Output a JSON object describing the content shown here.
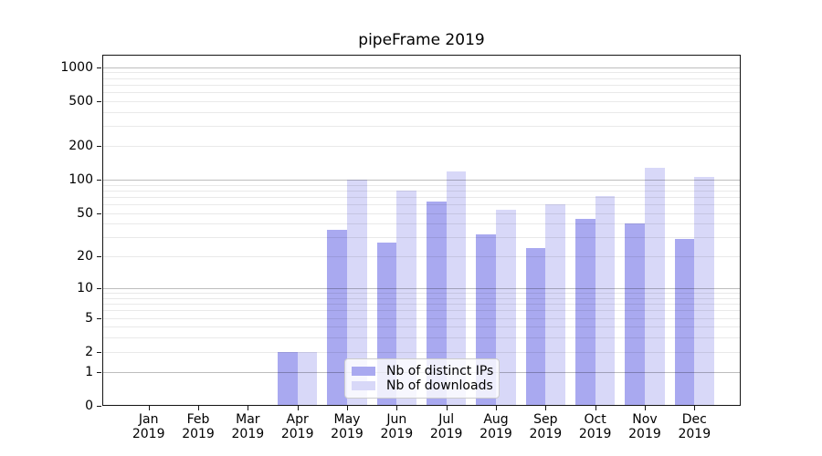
{
  "title": "pipeFrame 2019",
  "chart_data": {
    "type": "bar",
    "title": "pipeFrame 2019",
    "yscale": "log1p",
    "grid": "both (major and minor), drawn above bars",
    "legend_position": "lower center",
    "categories": [
      "Jan 2019",
      "Feb 2019",
      "Mar 2019",
      "Apr 2019",
      "May 2019",
      "Jun 2019",
      "Jul 2019",
      "Aug 2019",
      "Sep 2019",
      "Oct 2019",
      "Nov 2019",
      "Dec 2019"
    ],
    "series": [
      {
        "name": "Nb of distinct IPs",
        "color": "#a9a9f0",
        "values": [
          0,
          0,
          0,
          2,
          35,
          27,
          64,
          32,
          24,
          44,
          40,
          29
        ]
      },
      {
        "name": "Nb of downloads",
        "color": "#d8d8f8",
        "values": [
          0,
          0,
          0,
          2,
          100,
          80,
          118,
          54,
          60,
          71,
          128,
          105
        ]
      }
    ],
    "y_ticks": [
      0,
      1,
      2,
      5,
      10,
      20,
      50,
      100,
      200,
      500,
      1000
    ],
    "ylim": [
      0,
      1290
    ]
  },
  "colors": {
    "background": "#ffffff",
    "spine": "#141414",
    "text": "#000000",
    "major_grid": "rgba(0,0,0,0.26)",
    "minor_grid": "rgba(0,0,0,0.085)",
    "legend_border": "#cccccc",
    "legend_bg": "rgba(255,255,255,0.8)"
  }
}
